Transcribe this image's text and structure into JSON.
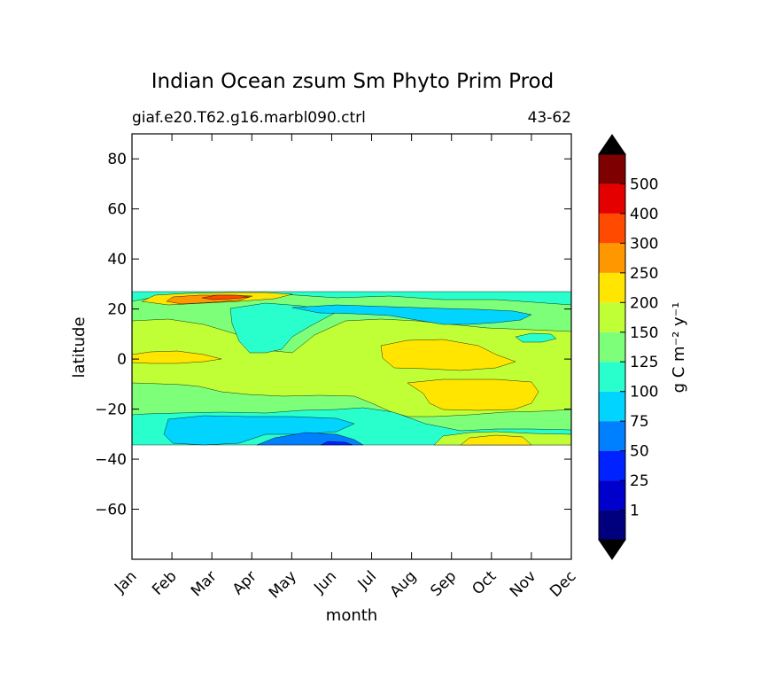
{
  "chart_data": {
    "type": "contourf",
    "title": "Indian Ocean zsum Sm Phyto Prim Prod",
    "subtitle_left": "giaf.e20.T62.g16.marbl090.ctrl",
    "subtitle_right": "43-62",
    "xlabel": "month",
    "ylabel": "latitude",
    "x_categories": [
      "Jan",
      "Feb",
      "Mar",
      "Apr",
      "May",
      "Jun",
      "Jul",
      "Aug",
      "Sep",
      "Oct",
      "Nov",
      "Dec"
    ],
    "xlim": [
      0,
      11
    ],
    "ylim": [
      -80,
      90
    ],
    "y_ticks": [
      80,
      60,
      40,
      20,
      0,
      -20,
      -40,
      -60
    ],
    "y_tick_labels": [
      "80",
      "60",
      "40",
      "20",
      "0",
      "−20",
      "−40",
      "−60"
    ],
    "data_extent_lat": [
      -34,
      27
    ],
    "colorbar": {
      "label": "g C m⁻² y⁻¹",
      "levels": [
        1,
        25,
        50,
        75,
        100,
        125,
        150,
        200,
        250,
        300,
        400,
        500
      ],
      "tick_labels": [
        "1",
        "25",
        "50",
        "75",
        "100",
        "125",
        "150",
        "200",
        "250",
        "300",
        "400",
        "500"
      ],
      "colors": [
        "#00007f",
        "#0000cd",
        "#0022ff",
        "#0080ff",
        "#00d4ff",
        "#29ffcd",
        "#7dff79",
        "#c0ff36",
        "#ffe500",
        "#ff9800",
        "#ff4a00",
        "#e50000",
        "#7f0000"
      ],
      "extend": "both",
      "extend_colors": [
        "#000000",
        "#000000"
      ]
    },
    "regions": [
      {
        "level_range": "100-125",
        "lat": [
          -34,
          27
        ],
        "months": [
          0,
          11
        ],
        "note": "background band"
      },
      {
        "level_range": "125-150",
        "lat": [
          -26,
          27
        ],
        "months": [
          0,
          11
        ]
      },
      {
        "level_range": "150-200",
        "lat": [
          -25,
          23
        ],
        "months": [
          0,
          11
        ],
        "note": "equatorial core"
      },
      {
        "level_range": "200-250",
        "lat": [
          -20,
          -8
        ],
        "months": [
          7,
          10
        ],
        "note": "southern bloom Aug-Oct"
      },
      {
        "level_range": "200-250",
        "lat": [
          -5,
          7
        ],
        "months": [
          6.5,
          9.5
        ]
      },
      {
        "level_range": "200-250",
        "lat": [
          -1,
          3
        ],
        "months": [
          0,
          2
        ]
      },
      {
        "level_range": "200-250",
        "lat": [
          21,
          27
        ],
        "months": [
          0,
          4
        ]
      },
      {
        "level_range": "250-300",
        "lat": [
          22,
          26
        ],
        "months": [
          0.8,
          3.5
        ],
        "note": "Arabian Sea winter bloom"
      },
      {
        "level_range": "300-400",
        "lat": [
          24,
          26
        ],
        "months": [
          1.8,
          2.8
        ]
      },
      {
        "level_range": "100-125",
        "lat": [
          3,
          22
        ],
        "months": [
          2.5,
          5.5
        ],
        "note": "northern tongue"
      },
      {
        "level_range": "75-100",
        "lat": [
          14,
          22
        ],
        "months": [
          4,
          10.5
        ]
      },
      {
        "level_range": "75-100",
        "lat": [
          -33,
          -24
        ],
        "months": [
          0.8,
          5.7
        ]
      },
      {
        "level_range": "50-75",
        "lat": [
          -34,
          -29
        ],
        "months": [
          3.2,
          6.5
        ]
      },
      {
        "level_range": "25-50",
        "lat": [
          -34,
          -33
        ],
        "months": [
          4.5,
          6
        ]
      },
      {
        "level_range": "150-200",
        "lat": [
          -34,
          -30
        ],
        "months": [
          7.5,
          11
        ]
      },
      {
        "level_range": "200-250",
        "lat": [
          -34,
          -31
        ],
        "months": [
          8.5,
          10
        ]
      },
      {
        "level_range": "100-125",
        "lat": [
          8,
          12
        ],
        "months": [
          9.6,
          10.4
        ]
      }
    ]
  }
}
